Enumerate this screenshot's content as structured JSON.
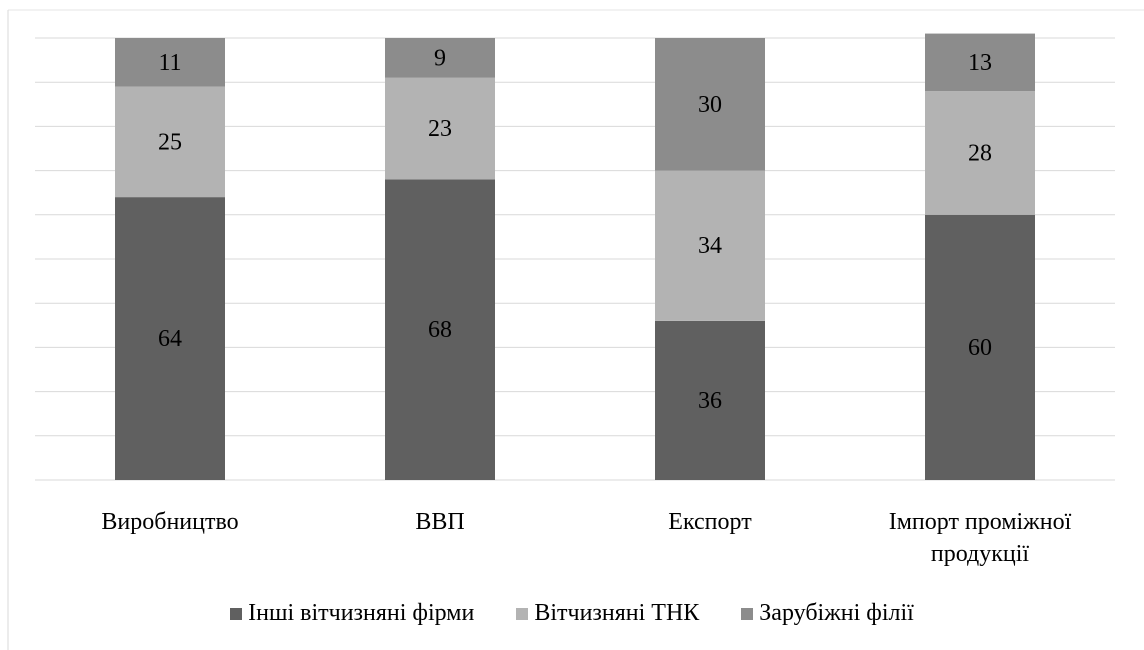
{
  "chart_data": {
    "type": "bar",
    "stacked": true,
    "categories": [
      "Виробництво",
      "ВВП",
      "Експорт",
      "Імпорт проміжної продукції"
    ],
    "series": [
      {
        "name": "Інші вітчизняні фірми",
        "color": "#606060",
        "values": [
          64,
          68,
          36,
          60
        ]
      },
      {
        "name": "Вітчизняні ТНК",
        "color": "#b3b3b3",
        "values": [
          25,
          23,
          34,
          28
        ]
      },
      {
        "name": "Зарубіжні філії",
        "color": "#8c8c8c",
        "values": [
          11,
          9,
          30,
          13
        ]
      }
    ],
    "ylim": [
      0,
      100
    ],
    "yticks": [
      0,
      10,
      20,
      30,
      40,
      50,
      60,
      70,
      80,
      90,
      100
    ],
    "grid": true,
    "legend": "bottom"
  }
}
